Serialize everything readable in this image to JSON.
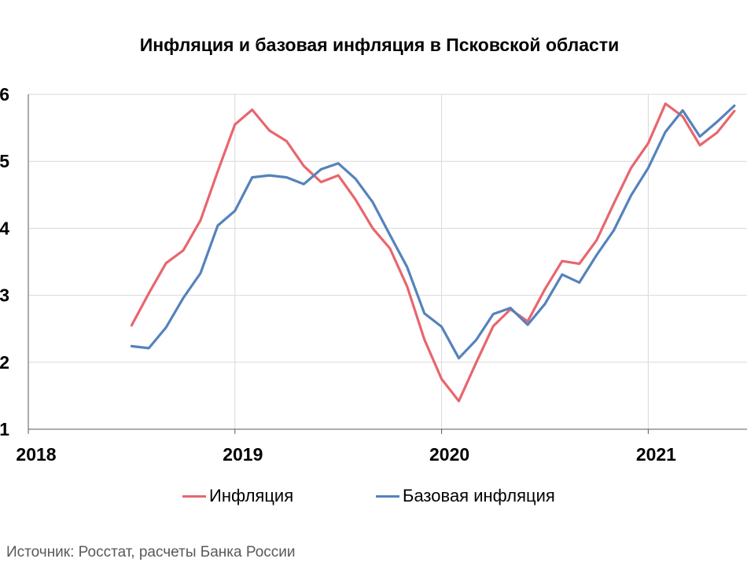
{
  "chart_data": {
    "type": "line",
    "title": "Инфляция и базовая инфляция в Псковской области",
    "xlabel": "",
    "ylabel": "",
    "xlim": [
      "2018-01",
      "2021-06"
    ],
    "ylim": [
      1,
      6
    ],
    "y_ticks": [
      1,
      2,
      3,
      4,
      5,
      6
    ],
    "x_tick_labels": [
      "2018",
      "2019",
      "2020",
      "2021"
    ],
    "grid": true,
    "legend_position": "bottom",
    "x": [
      "2018-07",
      "2018-08",
      "2018-09",
      "2018-10",
      "2018-11",
      "2018-12",
      "2019-01",
      "2019-02",
      "2019-03",
      "2019-04",
      "2019-05",
      "2019-06",
      "2019-07",
      "2019-08",
      "2019-09",
      "2019-10",
      "2019-11",
      "2019-12",
      "2020-01",
      "2020-02",
      "2020-03",
      "2020-04",
      "2020-05",
      "2020-06",
      "2020-07",
      "2020-08",
      "2020-09",
      "2020-10",
      "2020-11",
      "2020-12",
      "2021-01",
      "2021-02",
      "2021-03",
      "2021-04",
      "2021-05",
      "2021-06"
    ],
    "series": [
      {
        "name": "Инфляция",
        "color": "#e8666d",
        "values": [
          2.55,
          3.03,
          3.48,
          3.67,
          4.12,
          4.85,
          5.55,
          5.77,
          5.46,
          5.3,
          4.93,
          4.69,
          4.79,
          4.43,
          4.0,
          3.7,
          3.13,
          2.34,
          1.75,
          1.42,
          1.99,
          2.54,
          2.79,
          2.61,
          3.09,
          3.51,
          3.47,
          3.82,
          4.37,
          4.9,
          5.27,
          5.86,
          5.67,
          5.24,
          5.43,
          5.75
        ]
      },
      {
        "name": "Базовая инфляция",
        "color": "#5582bc",
        "values": [
          2.24,
          2.21,
          2.52,
          2.96,
          3.33,
          4.04,
          4.26,
          4.76,
          4.79,
          4.76,
          4.66,
          4.88,
          4.97,
          4.74,
          4.39,
          3.9,
          3.42,
          2.73,
          2.53,
          2.06,
          2.33,
          2.72,
          2.81,
          2.56,
          2.87,
          3.31,
          3.19,
          3.6,
          3.97,
          4.49,
          4.9,
          5.44,
          5.76,
          5.37,
          5.59,
          5.83
        ]
      }
    ]
  },
  "source_note": "Источник: Росстат, расчеты Банка России"
}
